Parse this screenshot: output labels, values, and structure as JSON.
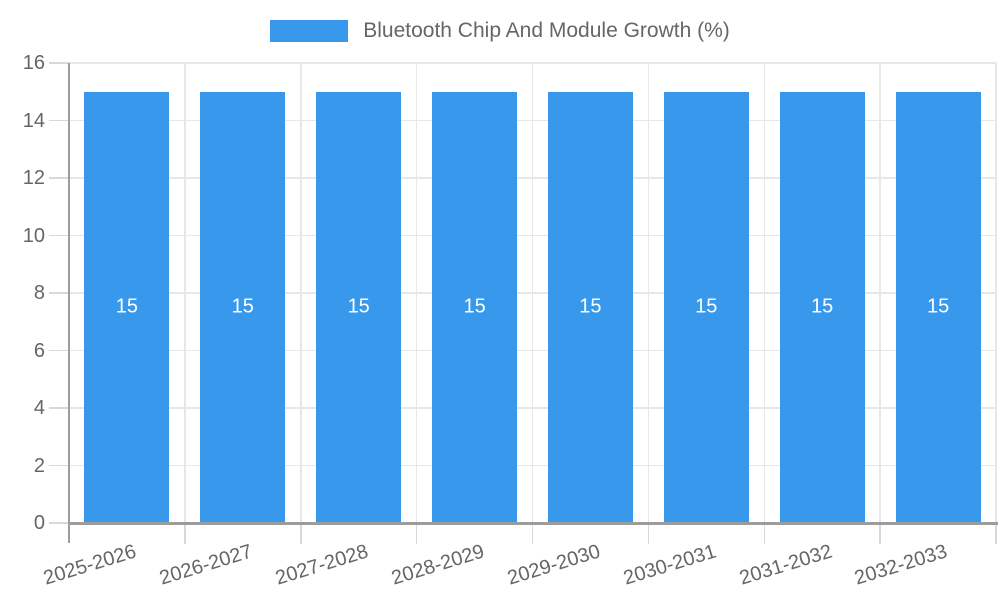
{
  "chart_data": {
    "type": "bar",
    "title": "Bluetooth Chip And Module Growth (%)",
    "categories": [
      "2025-2026",
      "2026-2027",
      "2027-2028",
      "2028-2029",
      "2029-2030",
      "2030-2031",
      "2031-2032",
      "2032-2033"
    ],
    "values": [
      15,
      15,
      15,
      15,
      15,
      15,
      15,
      15
    ],
    "bar_value_labels": [
      "15",
      "15",
      "15",
      "15",
      "15",
      "15",
      "15",
      "15"
    ],
    "xlabel": "",
    "ylabel": "",
    "ylim": [
      0,
      16
    ],
    "yticks": [
      0,
      2,
      4,
      6,
      8,
      10,
      12,
      14,
      16
    ],
    "grid": true,
    "legend_position": "top",
    "colors": {
      "bar": "#3899EC",
      "text": "#666666",
      "grid": "#E7E7E7",
      "axis": "#9C9C9C",
      "tick": "#D8D8D8",
      "bar_label": "#FFFFFF",
      "background": "#FFFFFF"
    }
  }
}
